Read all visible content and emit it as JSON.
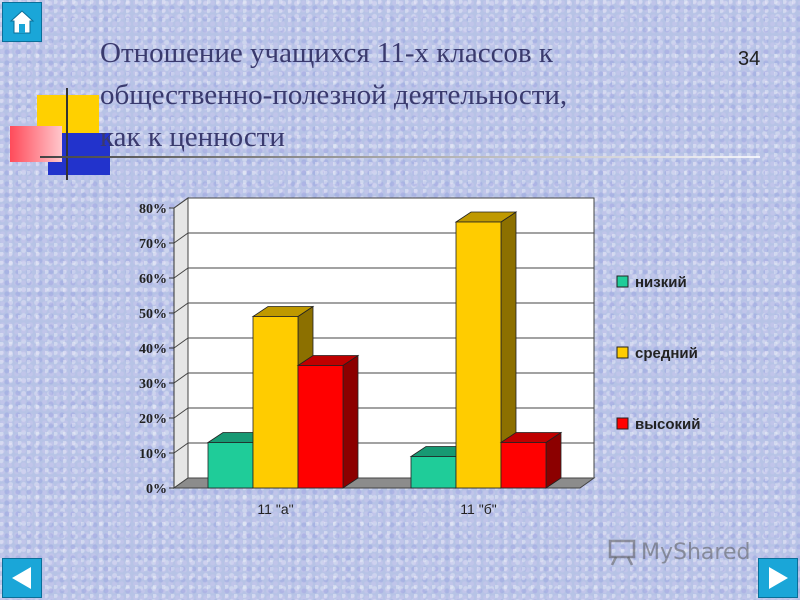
{
  "slide": {
    "title_lines": [
      "Отношение учащихся 11-х классов к",
      "общественно-полезной деятельности,",
      "как к ценности"
    ],
    "page_number": "34"
  },
  "nav": {
    "home_icon": "home-icon",
    "prev_icon": "arrow-left-icon",
    "next_icon": "arrow-right-icon"
  },
  "watermark": {
    "text": "MyShared"
  },
  "colors": {
    "nav": "#1aa6d8",
    "low": "#1fcc99",
    "medium": "#ffcc00",
    "high": "#ff0000"
  },
  "chart_data": {
    "type": "bar",
    "categories": [
      "11 \"а\"",
      "11 \"б\""
    ],
    "series": [
      {
        "name": "низкий",
        "values": [
          13,
          9
        ],
        "color": "#1fcc99"
      },
      {
        "name": "средний",
        "values": [
          49,
          76
        ],
        "color": "#ffcc00"
      },
      {
        "name": "высокий",
        "values": [
          35,
          13
        ],
        "color": "#ff0000"
      }
    ],
    "ytick_labels": [
      "0%",
      "10%",
      "20%",
      "30%",
      "40%",
      "50%",
      "60%",
      "70%",
      "80%"
    ],
    "ylim": [
      0,
      80
    ],
    "grid": true,
    "legend_position": "right",
    "style": "3d"
  }
}
